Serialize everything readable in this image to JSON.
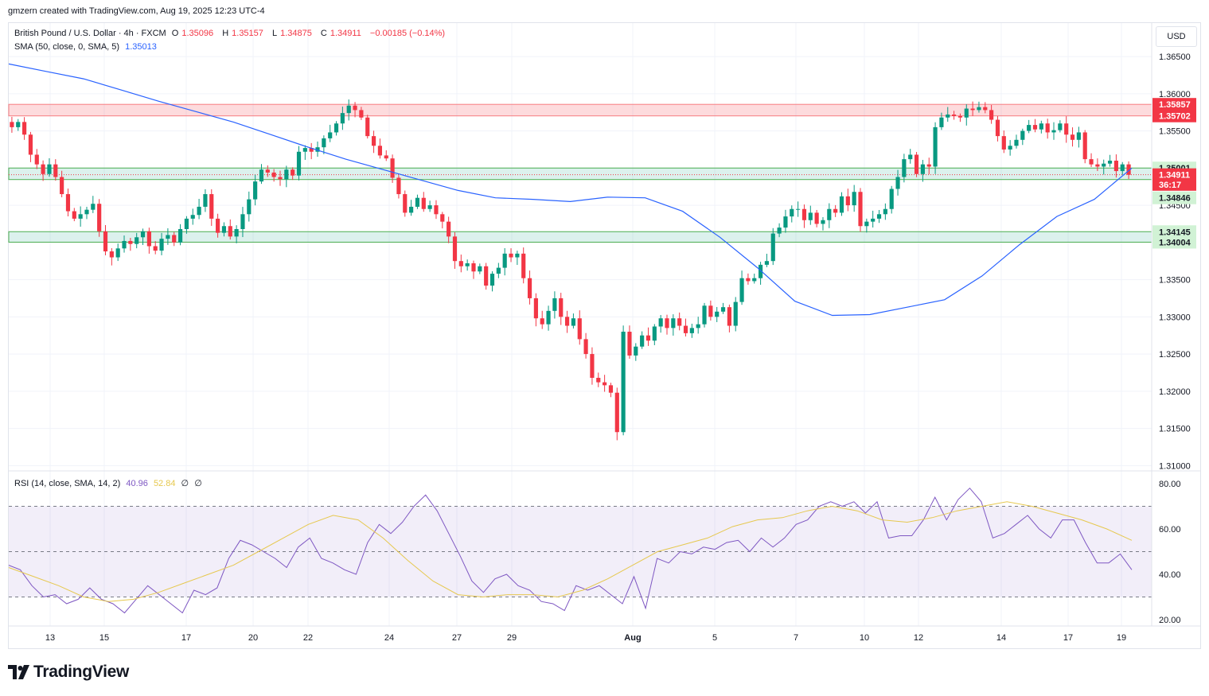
{
  "credit": "gmzern created with TradingView.com, Aug 19, 2025 12:23 UTC-4",
  "brand": "TradingView",
  "currency": "USD",
  "legend": {
    "symbol": "British Pound / U.S. Dollar · 4h · FXCM",
    "o_label": "O",
    "o": "1.35096",
    "h_label": "H",
    "h": "1.35157",
    "l_label": "L",
    "l": "1.34875",
    "c_label": "C",
    "c": "1.34911",
    "change": "−0.00185 (−0.14%)",
    "sma_label": "SMA (50, close, 0, SMA, 5)",
    "sma_value": "1.35013",
    "rsi_label": "RSI (14, close, SMA, 14, 2)",
    "rsi_value": "40.96",
    "rsi_ma_value": "52.84",
    "rsi_extra1": "∅",
    "rsi_extra2": "∅"
  },
  "colors": {
    "up": "#089981",
    "down": "#f23645",
    "sma": "#2962ff",
    "rsi": "#7e57c2",
    "rsi_ma": "#e6c84f"
  },
  "chart_data": {
    "type": "candlestick",
    "price_axis": {
      "ticks": [
        "1.36500",
        "1.36000",
        "1.35500",
        "1.35000",
        "1.34500",
        "1.34000",
        "1.33500",
        "1.33000",
        "1.32500",
        "1.32000",
        "1.31500",
        "1.31000"
      ],
      "range": [
        1.3095,
        1.3695
      ]
    },
    "time_axis": {
      "ticks": [
        "13",
        "15",
        "17",
        "20",
        "22",
        "24",
        "27",
        "29",
        "Aug",
        "5",
        "7",
        "10",
        "12",
        "14",
        "17",
        "19"
      ]
    },
    "price_labels": [
      {
        "text": "1.35857",
        "price": 1.35857,
        "style": "resistance"
      },
      {
        "text": "1.35702",
        "price": 1.35702,
        "style": "resistance"
      },
      {
        "text": "1.35001",
        "price": 1.35001,
        "style": "support"
      },
      {
        "text": "1.34911",
        "price": 1.34911,
        "style": "current"
      },
      {
        "text": "36:17",
        "price": 1.34781,
        "style": "current"
      },
      {
        "text": "1.34846",
        "price": 1.346,
        "style": "support"
      },
      {
        "text": "1.34145",
        "price": 1.34145,
        "style": "support"
      },
      {
        "text": "1.34004",
        "price": 1.34004,
        "style": "support"
      }
    ],
    "zones": [
      {
        "name": "resistance",
        "from": 1.35702,
        "to": 1.35857,
        "color": "#f23645"
      },
      {
        "name": "support-upper",
        "from": 1.34846,
        "to": 1.35001,
        "color": "#089981"
      },
      {
        "name": "support-lower",
        "from": 1.34004,
        "to": 1.34145,
        "color": "#089981"
      }
    ],
    "close_line": 1.34911,
    "closes": [
      1.3555,
      1.3562,
      1.3545,
      1.3518,
      1.3505,
      1.3492,
      1.3505,
      1.3488,
      1.3465,
      1.3442,
      1.3432,
      1.3438,
      1.3444,
      1.3452,
      1.3415,
      1.3388,
      1.338,
      1.3392,
      1.3402,
      1.3398,
      1.3407,
      1.3415,
      1.3395,
      1.3389,
      1.3405,
      1.341,
      1.34,
      1.3418,
      1.3432,
      1.3437,
      1.3448,
      1.3465,
      1.3432,
      1.3413,
      1.3422,
      1.3408,
      1.3418,
      1.3438,
      1.3458,
      1.3482,
      1.3498,
      1.3494,
      1.3488,
      1.3485,
      1.3498,
      1.349,
      1.3522,
      1.3527,
      1.3522,
      1.3528,
      1.354,
      1.3548,
      1.356,
      1.3574,
      1.3584,
      1.3578,
      1.3568,
      1.3543,
      1.353,
      1.3517,
      1.3513,
      1.3487,
      1.3465,
      1.344,
      1.3448,
      1.346,
      1.3445,
      1.345,
      1.3438,
      1.3428,
      1.3408,
      1.3375,
      1.3368,
      1.3372,
      1.3361,
      1.3368,
      1.3342,
      1.3358,
      1.3366,
      1.3385,
      1.338,
      1.3385,
      1.3352,
      1.3325,
      1.3298,
      1.329,
      1.3308,
      1.3325,
      1.33,
      1.3288,
      1.3298,
      1.327,
      1.325,
      1.3218,
      1.3212,
      1.3208,
      1.3198,
      1.3145,
      1.328,
      1.3248,
      1.326,
      1.3275,
      1.3268,
      1.3287,
      1.3298,
      1.3285,
      1.3298,
      1.3288,
      1.3278,
      1.3285,
      1.329,
      1.3315,
      1.33,
      1.3307,
      1.3313,
      1.3288,
      1.332,
      1.3352,
      1.3348,
      1.3352,
      1.337,
      1.3375,
      1.3412,
      1.342,
      1.3435,
      1.3445,
      1.3445,
      1.343,
      1.344,
      1.3425,
      1.343,
      1.3445,
      1.344,
      1.3462,
      1.345,
      1.3468,
      1.3422,
      1.3428,
      1.3432,
      1.3438,
      1.3445,
      1.3472,
      1.3488,
      1.3512,
      1.3518,
      1.3492,
      1.3505,
      1.3502,
      1.3555,
      1.3568,
      1.3572,
      1.357,
      1.3568,
      1.358,
      1.3578,
      1.3582,
      1.3578,
      1.3565,
      1.3543,
      1.3525,
      1.353,
      1.3538,
      1.355,
      1.3558,
      1.3552,
      1.356,
      1.3548,
      1.3551,
      1.356,
      1.3545,
      1.3538,
      1.3548,
      1.3512,
      1.3505,
      1.3502,
      1.3506,
      1.351,
      1.3496,
      1.3505,
      1.3491
    ],
    "sma": [
      1.364,
      1.363,
      1.362,
      1.3605,
      1.359,
      1.3576,
      1.3562,
      1.3545,
      1.3528,
      1.3512,
      1.3498,
      1.3484,
      1.347,
      1.346,
      1.3458,
      1.3455,
      1.3461,
      1.346,
      1.3442,
      1.3407,
      1.3366,
      1.3321,
      1.3302,
      1.3303,
      1.3313,
      1.3323,
      1.3355,
      1.3397,
      1.3435,
      1.3458,
      1.35
    ],
    "rsi": [
      44,
      42,
      35,
      30,
      31,
      27,
      29,
      34,
      29,
      27,
      23,
      29,
      35,
      31,
      27,
      23,
      33,
      31,
      34,
      47,
      55,
      53,
      50,
      47,
      43,
      52,
      56,
      47,
      45,
      42,
      40,
      54,
      62,
      58,
      63,
      70,
      75,
      68,
      58,
      48,
      37,
      32,
      38,
      40,
      35,
      33,
      28,
      27,
      24,
      35,
      33,
      35,
      31,
      27,
      39,
      25,
      47,
      45,
      50,
      49,
      52,
      51,
      54,
      55,
      50,
      56,
      52,
      56,
      62,
      64,
      70,
      72,
      70,
      72,
      67,
      72,
      56,
      57,
      57,
      64,
      74,
      64,
      73,
      78,
      72,
      56,
      58,
      62,
      66,
      60,
      56,
      64,
      64,
      54,
      45,
      45,
      49,
      42
    ],
    "rsi_ma": [
      43,
      39,
      35,
      30,
      28,
      29,
      32,
      36,
      40,
      44,
      50,
      56,
      62,
      66,
      64,
      56,
      46,
      37,
      31,
      30,
      31,
      31,
      30,
      33,
      38,
      44,
      50,
      53,
      56,
      61,
      64,
      65,
      68,
      70,
      68,
      64,
      63,
      65,
      68,
      70,
      72,
      70,
      67,
      64,
      60,
      55
    ]
  }
}
